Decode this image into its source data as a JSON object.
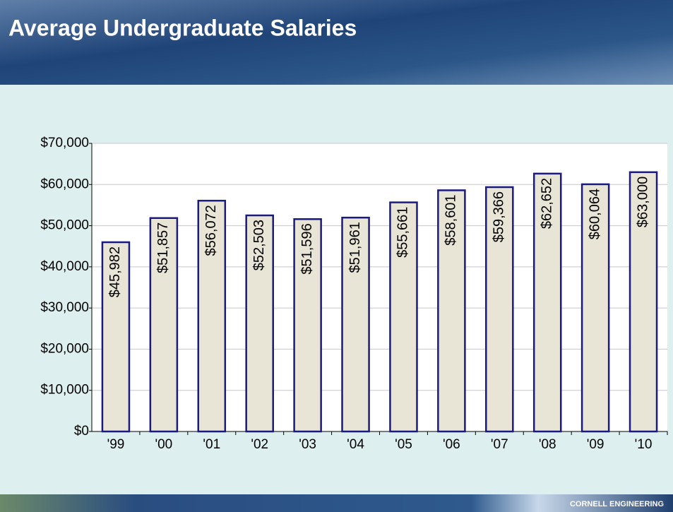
{
  "chart_data": {
    "type": "bar",
    "title": "Average Undergraduate Salaries",
    "categories": [
      "'99",
      "'00",
      "'01",
      "'02",
      "'03",
      "'04",
      "'05",
      "'06",
      "'07",
      "'08",
      "'09",
      "'10"
    ],
    "values": [
      45982,
      51857,
      56072,
      52503,
      51596,
      51961,
      55661,
      58601,
      59366,
      62652,
      60064,
      63000
    ],
    "value_labels": [
      "$45,982",
      "$51,857",
      "$56,072",
      "$52,503",
      "$51,596",
      "$51,961",
      "$55,661",
      "$58,601",
      "$59,366",
      "$62,652",
      "$60,064",
      "$63,000"
    ],
    "color": "#e8e4d6",
    "edge_color": "#1a1a80",
    "ylim": [
      0,
      70000
    ],
    "yticks": [
      {
        "value": 0,
        "label": "$0"
      },
      {
        "value": 10000,
        "label": "$10,000"
      },
      {
        "value": 20000,
        "label": "$20,000"
      },
      {
        "value": 30000,
        "label": "$30,000"
      },
      {
        "value": 40000,
        "label": "$40,000"
      },
      {
        "value": 50000,
        "label": "$50,000"
      },
      {
        "value": 60000,
        "label": "$60,000"
      },
      {
        "value": 70000,
        "label": "$70,000"
      }
    ],
    "grid": true
  },
  "footer": "CORNELL ENGINEERING"
}
